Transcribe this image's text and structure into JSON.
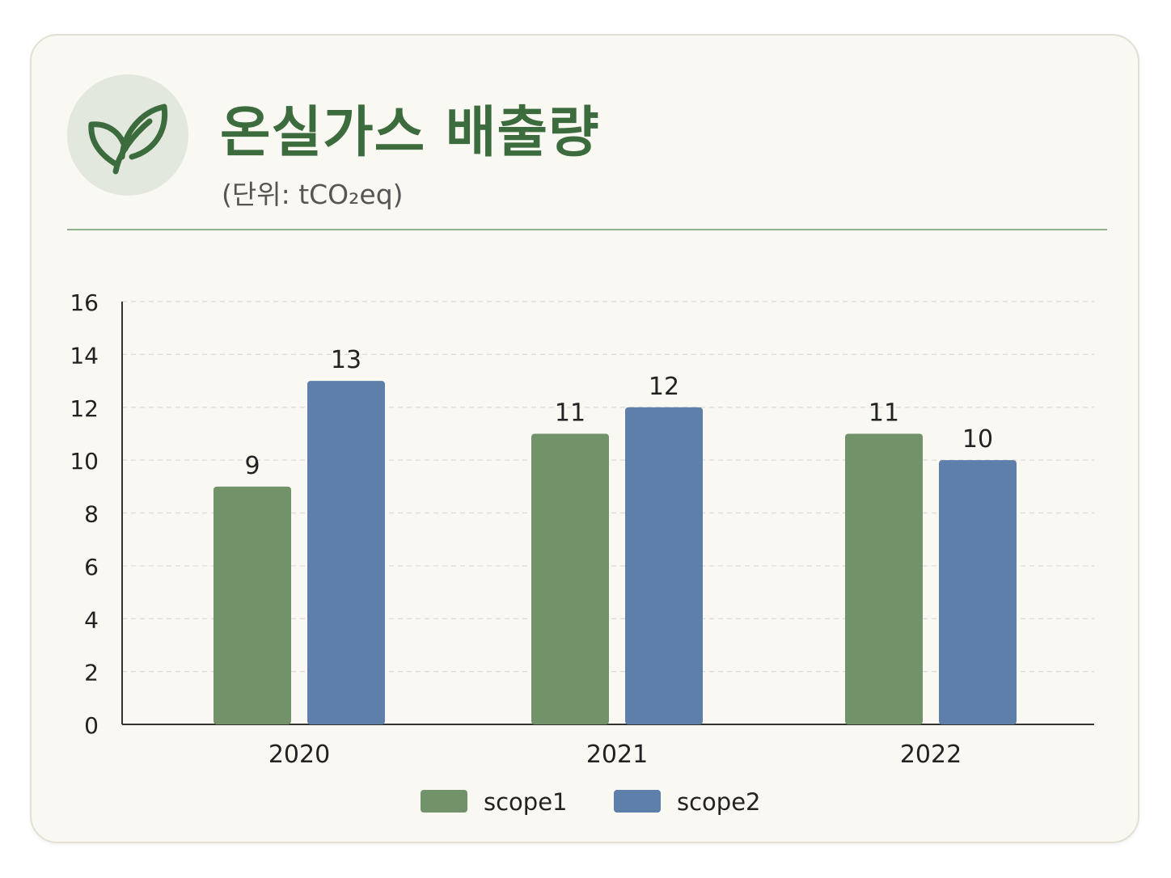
{
  "header": {
    "title": "온실가스 배출량",
    "unit": "(단위: tCO₂eq)",
    "icon": "leaf-icon"
  },
  "colors": {
    "accent": "#3c6b3e",
    "scope1": "#72936a",
    "scope2": "#5f7fab",
    "icon_bg": "#e2e8dd"
  },
  "chart_data": {
    "type": "bar",
    "categories": [
      "2020",
      "2021",
      "2022"
    ],
    "series": [
      {
        "name": "scope1",
        "values": [
          9,
          11,
          11
        ]
      },
      {
        "name": "scope2",
        "values": [
          13,
          12,
          10
        ]
      }
    ],
    "ylim": [
      0,
      16
    ],
    "yticks": [
      "0",
      "2",
      "4",
      "6",
      "8",
      "10",
      "12",
      "14",
      "16"
    ],
    "grid": true,
    "legend": "bottom-center",
    "data_labels": true
  }
}
